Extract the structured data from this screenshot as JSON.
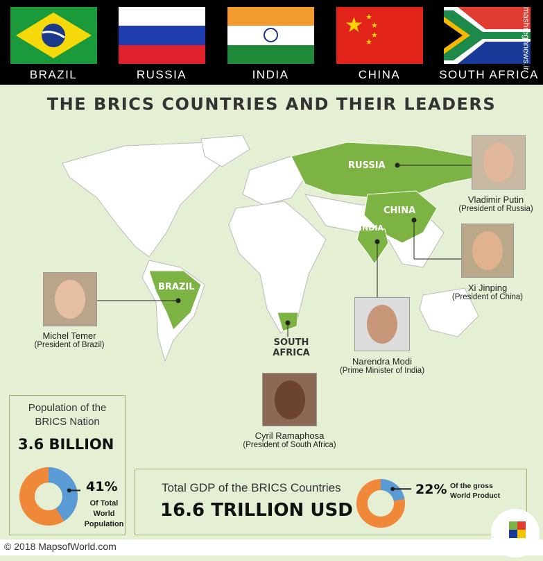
{
  "flags": [
    {
      "label": "BRAZIL"
    },
    {
      "label": "RUSSIA"
    },
    {
      "label": "INDIA"
    },
    {
      "label": "CHINA"
    },
    {
      "label": "SOUTH AFRICA"
    }
  ],
  "watermark": "mashreghnews.ir",
  "title": "THE BRICS COUNTRIES AND THEIR LEADERS",
  "map_labels": {
    "russia": "RUSSIA",
    "china": "CHINA",
    "india": "INDIA",
    "brazil": "BRAZIL",
    "south_africa_1": "SOUTH",
    "south_africa_2": "AFRICA"
  },
  "leaders": [
    {
      "name": "Vladimir Putin",
      "role": "(President of Russia)"
    },
    {
      "name": "Xi Jinping",
      "role": "(President of China)"
    },
    {
      "name": "Narendra Modi",
      "role": "(Prime Minister of India)"
    },
    {
      "name": "Michel Temer",
      "role": "(President of Brazil)"
    },
    {
      "name": "Cyril Ramaphosa",
      "role": "(President of South Africa)"
    }
  ],
  "population": {
    "heading_1": "Population of the",
    "heading_2": "BRICS Nation",
    "value": "3.6 BILLION",
    "percent": 41,
    "percent_label": "41%",
    "note_1": "Of Total",
    "note_2": "World",
    "note_3": "Population"
  },
  "gdp": {
    "heading": "Total GDP of the BRICS Countries",
    "value": "16.6 TRILLION USD",
    "percent": 22,
    "percent_label": "22%",
    "note_1": "Of the gross",
    "note_2": "World Product"
  },
  "colors": {
    "brics_green": "#7cb342",
    "donut_blue": "#5b9bd5",
    "donut_orange": "#f0883a",
    "background": "#e5efd3"
  },
  "footer": "© 2018 MapsofWorld.com",
  "logo_text": "mapsofworld.com"
}
